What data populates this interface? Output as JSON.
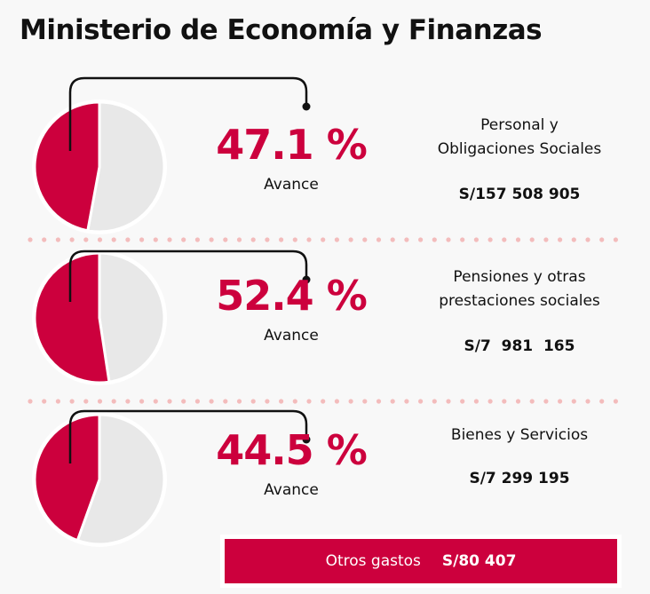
{
  "title": "Ministerio de Economía y Finanzas",
  "colors": {
    "accent": "#cc003d",
    "rest": "#e8e8e8",
    "dots": "#f3bcbc"
  },
  "chart_data": {
    "type": "pie",
    "title": "Ministerio de Economía y Finanzas",
    "items": [
      {
        "category": "Personal y Obligaciones Sociales",
        "cat_line1": "Personal y",
        "cat_line2": "Obligaciones Sociales",
        "percent": 47.1,
        "percent_label": "47.1 %",
        "label": "Avance",
        "amount": "S/157 508 905"
      },
      {
        "category": "Pensiones y otras prestaciones sociales",
        "cat_line1": "Pensiones y otras",
        "cat_line2": "prestaciones sociales",
        "percent": 52.4,
        "percent_label": "52.4 %",
        "label": "Avance",
        "amount": "S/7  981  165"
      },
      {
        "category": "Bienes y Servicios",
        "cat_line1": "Bienes y Servicios",
        "cat_line2": "",
        "percent": 44.5,
        "percent_label": "44.5 %",
        "label": "Avance",
        "amount": "S/7 299 195"
      }
    ]
  },
  "otros": {
    "label": "Otros gastos",
    "amount": "S/80 407"
  }
}
